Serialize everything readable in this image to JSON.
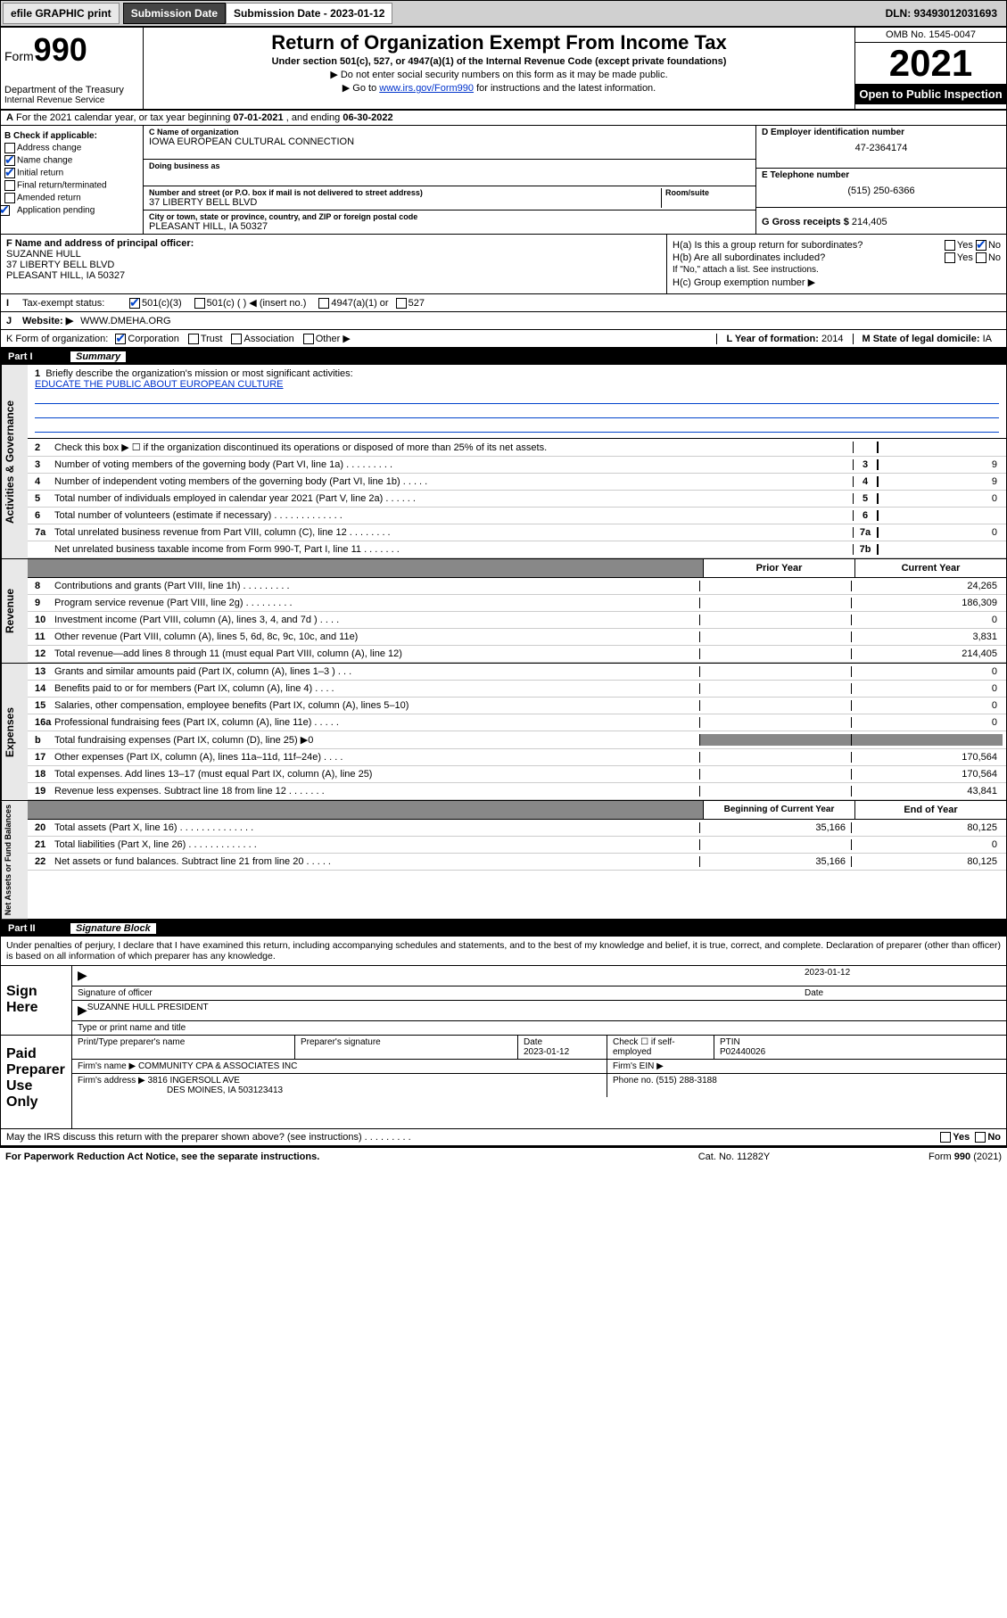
{
  "topbar": {
    "efile": "efile GRAPHIC print",
    "sub_label": "Submission Date - 2023-01-12",
    "dln": "DLN: 93493012031693"
  },
  "header": {
    "form_word": "Form",
    "form_num": "990",
    "dept": "Department of the Treasury",
    "irs": "Internal Revenue Service",
    "title": "Return of Organization Exempt From Income Tax",
    "sub1": "Under section 501(c), 527, or 4947(a)(1) of the Internal Revenue Code (except private foundations)",
    "sub2": "▶ Do not enter social security numbers on this form as it may be made public.",
    "sub3_pre": "▶ Go to ",
    "sub3_link": "www.irs.gov/Form990",
    "sub3_post": " for instructions and the latest information.",
    "omb": "OMB No. 1545-0047",
    "year": "2021",
    "inspect": "Open to Public Inspection"
  },
  "lineA": {
    "text_pre": "For the 2021 calendar year, or tax year beginning ",
    "begin": "07-01-2021",
    "mid": " , and ending ",
    "end": "06-30-2022"
  },
  "colB": {
    "hdr": "B Check if applicable:",
    "items": [
      "Address change",
      "Name change",
      "Initial return",
      "Final return/terminated",
      "Amended return",
      "Application pending"
    ],
    "checked": [
      false,
      true,
      true,
      false,
      false,
      true
    ]
  },
  "colC": {
    "name_lbl": "C Name of organization",
    "name": "IOWA EUROPEAN CULTURAL CONNECTION",
    "dba_lbl": "Doing business as",
    "addr_lbl": "Number and street (or P.O. box if mail is not delivered to street address)",
    "room_lbl": "Room/suite",
    "addr": "37 LIBERTY BELL BLVD",
    "city_lbl": "City or town, state or province, country, and ZIP or foreign postal code",
    "city": "PLEASANT HILL, IA  50327"
  },
  "colD": {
    "ein_lbl": "D Employer identification number",
    "ein": "47-2364174",
    "tel_lbl": "E Telephone number",
    "tel": "(515) 250-6366",
    "gross_lbl": "G Gross receipts $",
    "gross": "214,405"
  },
  "secF": {
    "lbl": "F  Name and address of principal officer:",
    "name": "SUZANNE HULL",
    "addr1": "37 LIBERTY BELL BLVD",
    "addr2": "PLEASANT HILL, IA  50327"
  },
  "secH": {
    "ha": "H(a)  Is this a group return for subordinates?",
    "hb": "H(b)  Are all subordinates included?",
    "hb_note": "If \"No,\" attach a list. See instructions.",
    "hc": "H(c)  Group exemption number ▶",
    "yes": "Yes",
    "no": "No"
  },
  "lineI": {
    "lbl": "Tax-exempt status:",
    "opts": [
      "501(c)(3)",
      "501(c) (   ) ◀ (insert no.)",
      "4947(a)(1) or",
      "527"
    ]
  },
  "lineJ": {
    "lbl": "Website: ▶",
    "val": "WWW.DMEHA.ORG"
  },
  "lineK": {
    "lbl": "K Form of organization:",
    "opts": [
      "Corporation",
      "Trust",
      "Association",
      "Other ▶"
    ]
  },
  "lineL": {
    "lbl": "L Year of formation:",
    "val": "2014"
  },
  "lineM": {
    "lbl": "M State of legal domicile:",
    "val": "IA"
  },
  "part1": {
    "num": "Part I",
    "title": "Summary"
  },
  "mission": {
    "q": "Briefly describe the organization's mission or most significant activities:",
    "val": "EDUCATE THE PUBLIC ABOUT EUROPEAN CULTURE"
  },
  "gov_lines": [
    {
      "n": "2",
      "t": "Check this box ▶ ☐  if the organization discontinued its operations or disposed of more than 25% of its net assets.",
      "num": "",
      "val": ""
    },
    {
      "n": "3",
      "t": "Number of voting members of the governing body (Part VI, line 1a)   .    .    .    .    .    .    .    .    .",
      "num": "3",
      "val": "9"
    },
    {
      "n": "4",
      "t": "Number of independent voting members of the governing body (Part VI, line 1b)   .    .    .    .    .",
      "num": "4",
      "val": "9"
    },
    {
      "n": "5",
      "t": "Total number of individuals employed in calendar year 2021 (Part V, line 2a)   .    .    .    .    .    .",
      "num": "5",
      "val": "0"
    },
    {
      "n": "6",
      "t": "Total number of volunteers (estimate if necessary)   .    .    .    .    .    .    .    .    .    .    .    .    .",
      "num": "6",
      "val": ""
    },
    {
      "n": "7a",
      "t": "Total unrelated business revenue from Part VIII, column (C), line 12   .    .    .    .    .    .    .    .",
      "num": "7a",
      "val": "0"
    },
    {
      "n": "",
      "t": "Net unrelated business taxable income from Form 990-T, Part I, line 11   .    .    .    .    .    .    .",
      "num": "7b",
      "val": ""
    }
  ],
  "twocol_hdr": {
    "prior": "Prior Year",
    "current": "Current Year"
  },
  "revenue_lines": [
    {
      "n": "8",
      "t": "Contributions and grants (Part VIII, line 1h)   .    .    .    .    .    .    .    .    .",
      "p": "",
      "c": "24,265"
    },
    {
      "n": "9",
      "t": "Program service revenue (Part VIII, line 2g)   .    .    .    .    .    .    .    .    .",
      "p": "",
      "c": "186,309"
    },
    {
      "n": "10",
      "t": "Investment income (Part VIII, column (A), lines 3, 4, and 7d )   .    .    .    .",
      "p": "",
      "c": "0"
    },
    {
      "n": "11",
      "t": "Other revenue (Part VIII, column (A), lines 5, 6d, 8c, 9c, 10c, and 11e)",
      "p": "",
      "c": "3,831"
    },
    {
      "n": "12",
      "t": "Total revenue—add lines 8 through 11 (must equal Part VIII, column (A), line 12)",
      "p": "",
      "c": "214,405"
    }
  ],
  "expense_lines": [
    {
      "n": "13",
      "t": "Grants and similar amounts paid (Part IX, column (A), lines 1–3 )   .    .    .",
      "p": "",
      "c": "0"
    },
    {
      "n": "14",
      "t": "Benefits paid to or for members (Part IX, column (A), line 4)   .    .    .    .",
      "p": "",
      "c": "0"
    },
    {
      "n": "15",
      "t": "Salaries, other compensation, employee benefits (Part IX, column (A), lines 5–10)",
      "p": "",
      "c": "0"
    },
    {
      "n": "16a",
      "t": "Professional fundraising fees (Part IX, column (A), line 11e)   .    .    .    .    .",
      "p": "",
      "c": "0"
    },
    {
      "n": "b",
      "t": "Total fundraising expenses (Part IX, column (D), line 25)  ▶0",
      "p": "-",
      "c": "-"
    },
    {
      "n": "17",
      "t": "Other expenses (Part IX, column (A), lines 11a–11d, 11f–24e)   .    .    .    .",
      "p": "",
      "c": "170,564"
    },
    {
      "n": "18",
      "t": "Total expenses. Add lines 13–17 (must equal Part IX, column (A), line 25)",
      "p": "",
      "c": "170,564"
    },
    {
      "n": "19",
      "t": "Revenue less expenses. Subtract line 18 from line 12   .    .    .    .    .    .    .",
      "p": "",
      "c": "43,841"
    }
  ],
  "netassets_hdr": {
    "begin": "Beginning of Current Year",
    "end": "End of Year"
  },
  "netassets_lines": [
    {
      "n": "20",
      "t": "Total assets (Part X, line 16)   .    .    .    .    .    .    .    .    .    .    .    .    .    .",
      "p": "35,166",
      "c": "80,125"
    },
    {
      "n": "21",
      "t": "Total liabilities (Part X, line 26)   .    .    .    .    .    .    .    .    .    .    .    .    .",
      "p": "",
      "c": "0"
    },
    {
      "n": "22",
      "t": "Net assets or fund balances. Subtract line 21 from line 20   .    .    .    .    .",
      "p": "35,166",
      "c": "80,125"
    }
  ],
  "part2": {
    "num": "Part II",
    "title": "Signature Block"
  },
  "declare": "Under penalties of perjury, I declare that I have examined this return, including accompanying schedules and statements, and to the best of my knowledge and belief, it is true, correct, and complete. Declaration of preparer (other than officer) is based on all information of which preparer has any knowledge.",
  "sign": {
    "here": "Sign Here",
    "sig_lbl": "Signature of officer",
    "date": "2023-01-12",
    "date_lbl": "Date",
    "name": "SUZANNE HULL  PRESIDENT",
    "name_lbl": "Type or print name and title"
  },
  "paid": {
    "title": "Paid Preparer Use Only",
    "h1": "Print/Type preparer's name",
    "h2": "Preparer's signature",
    "h3": "Date",
    "h3v": "2023-01-12",
    "h4": "Check ☐ if self-employed",
    "h5": "PTIN",
    "h5v": "P02440026",
    "firm_lbl": "Firm's name    ▶",
    "firm": "COMMUNITY CPA & ASSOCIATES INC",
    "ein_lbl": "Firm's EIN ▶",
    "addr_lbl": "Firm's address ▶",
    "addr1": "3816 INGERSOLL AVE",
    "addr2": "DES MOINES, IA  503123413",
    "phone_lbl": "Phone no.",
    "phone": "(515) 288-3188"
  },
  "may_discuss": "May the IRS discuss this return with the preparer shown above? (see instructions)   .    .    .    .    .    .    .    .    .",
  "footer": {
    "l": "For Paperwork Reduction Act Notice, see the separate instructions.",
    "m": "Cat. No. 11282Y",
    "r": "Form 990 (2021)"
  },
  "tabs": {
    "gov": "Activities & Governance",
    "rev": "Revenue",
    "exp": "Expenses",
    "net": "Net Assets or Fund Balances"
  }
}
